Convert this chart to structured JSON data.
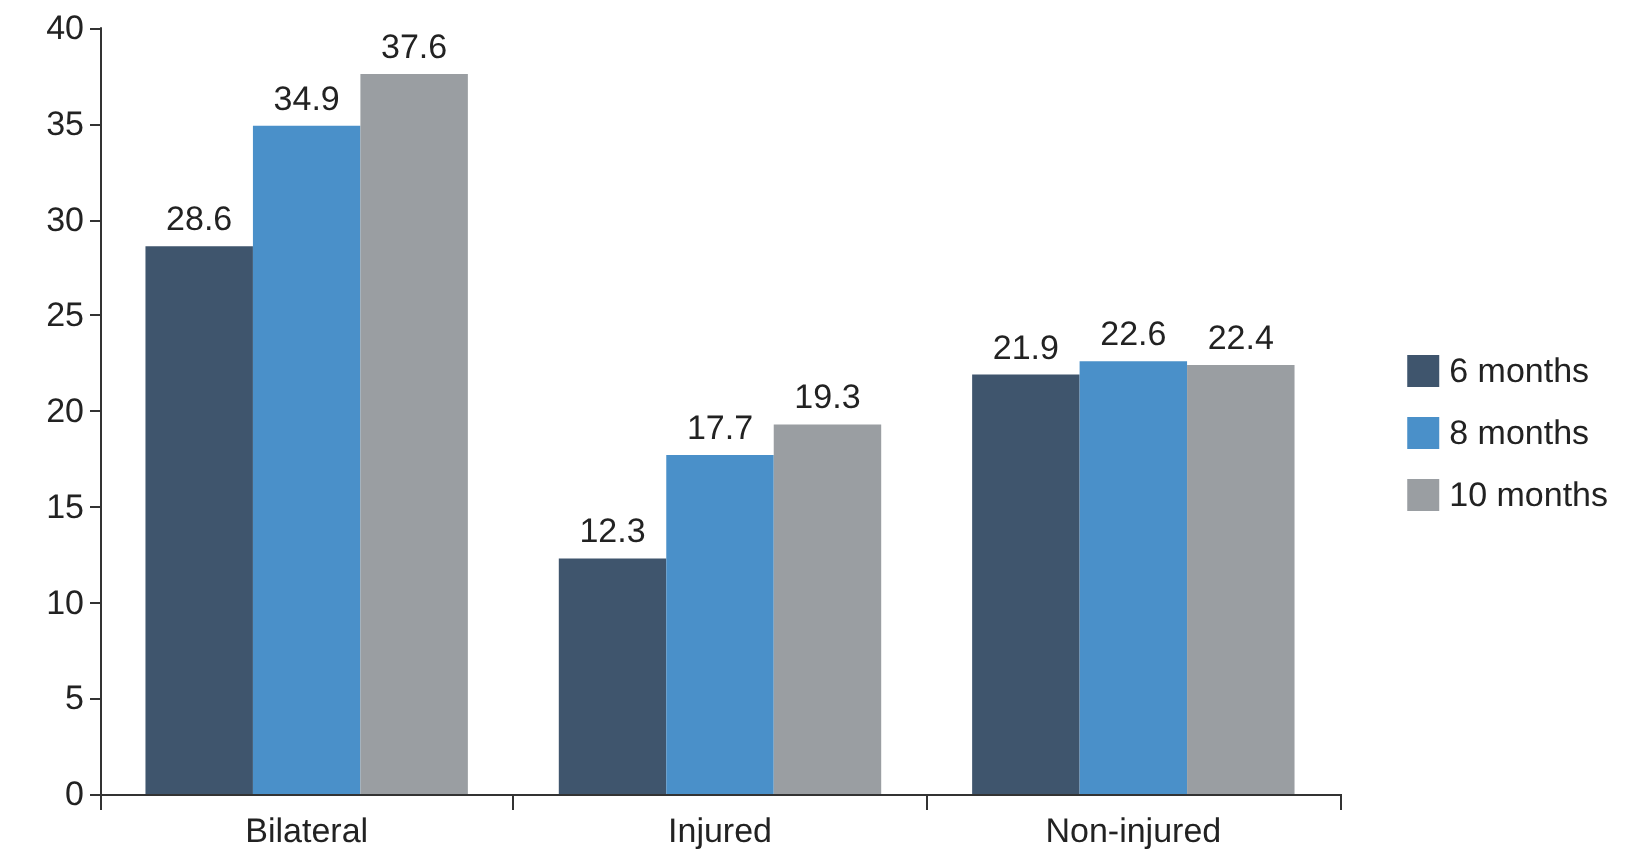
{
  "chart_data": {
    "type": "bar",
    "categories": [
      "Bilateral",
      "Injured",
      "Non-injured"
    ],
    "series": [
      {
        "name": "6 months",
        "color": "#3f556d",
        "values": [
          28.6,
          12.3,
          21.9
        ]
      },
      {
        "name": "8 months",
        "color": "#4a90c9",
        "values": [
          34.9,
          17.7,
          22.6
        ]
      },
      {
        "name": "10 months",
        "color": "#9a9ea2",
        "values": [
          37.6,
          19.3,
          22.4
        ]
      }
    ],
    "ylim": [
      0,
      40
    ],
    "yticks": [
      0,
      5,
      10,
      15,
      20,
      25,
      30,
      35,
      40
    ],
    "grid": false,
    "legend": "right",
    "data_labels": true
  }
}
